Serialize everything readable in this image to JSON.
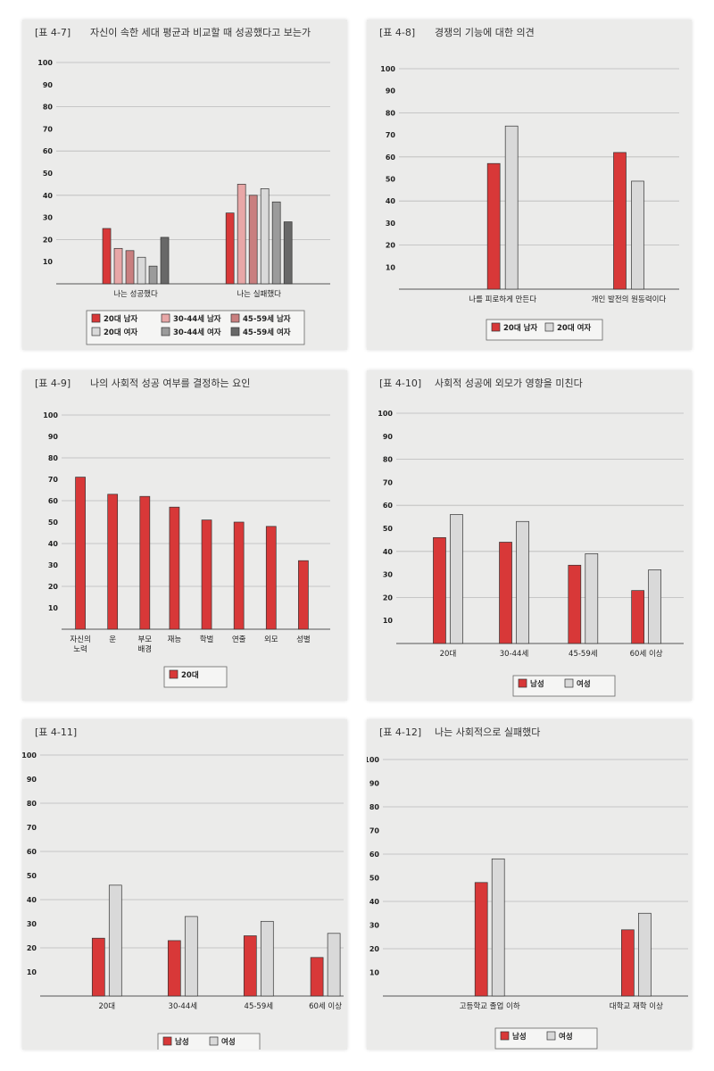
{
  "colors": {
    "red": "#d83838",
    "pink_light": "#e8a7a7",
    "pink_mid": "#c97f7f",
    "gray_light": "#d9d9d9",
    "gray_mid": "#9b9b9b",
    "gray_dark": "#686868",
    "panel_bg": "#ebebea"
  },
  "chart_data": [
    {
      "type": "bar",
      "label": "[표 4-7]",
      "title": "자신이 속한 세대 평균과 비교할 때 성공했다고 보는가",
      "categories": [
        "나는 성공했다",
        "나는 실패했다"
      ],
      "series": [
        {
          "name": "20대 남자",
          "values": [
            25,
            32
          ],
          "color": "#d83838"
        },
        {
          "name": "30-44세 남자",
          "values": [
            16,
            45
          ],
          "color": "#e8a7a7"
        },
        {
          "name": "45-59세 남자",
          "values": [
            15,
            40
          ],
          "color": "#c97f7f"
        },
        {
          "name": "20대 여자",
          "values": [
            12,
            43
          ],
          "color": "#d9d9d9"
        },
        {
          "name": "30-44세 여자",
          "values": [
            8,
            37
          ],
          "color": "#9b9b9b"
        },
        {
          "name": "45-59세 여자",
          "values": [
            21,
            28
          ],
          "color": "#686868"
        }
      ],
      "yticks": [
        10,
        20,
        30,
        40,
        50,
        60,
        70,
        80,
        90,
        100
      ],
      "ylim": [
        0,
        100
      ],
      "grid": true,
      "legend_position": "bottom"
    },
    {
      "type": "bar",
      "label": "[표 4-8]",
      "title": "경쟁의 기능에 대한 의견",
      "categories": [
        "나를 피로하게 만든다",
        "개인 발전의 원동력이다"
      ],
      "series": [
        {
          "name": "20대 남자",
          "values": [
            57,
            62
          ],
          "color": "#d83838"
        },
        {
          "name": "20대 여자",
          "values": [
            74,
            49
          ],
          "color": "#d9d9d9"
        }
      ],
      "yticks": [
        10,
        20,
        30,
        40,
        50,
        60,
        70,
        80,
        90,
        100
      ],
      "ylim": [
        0,
        100
      ],
      "grid": true,
      "legend_position": "bottom"
    },
    {
      "type": "bar",
      "label": "[표 4-9]",
      "title": "나의 사회적 성공 여부를 결정하는 요인",
      "categories": [
        "자신의\n노력",
        "운",
        "부모\n배경",
        "재능",
        "학벌",
        "연줄",
        "외모",
        "성별"
      ],
      "series": [
        {
          "name": "20대",
          "values": [
            71,
            63,
            62,
            57,
            51,
            50,
            48,
            32
          ],
          "color": "#d83838"
        }
      ],
      "yticks": [
        10,
        20,
        30,
        40,
        50,
        60,
        70,
        80,
        90,
        100
      ],
      "ylim": [
        0,
        100
      ],
      "grid": true,
      "legend_position": "bottom"
    },
    {
      "type": "bar",
      "label": "[표 4-10]",
      "title": "사회적 성공에 외모가 영향을 미친다",
      "categories": [
        "20대",
        "30-44세",
        "45-59세",
        "60세 이상"
      ],
      "series": [
        {
          "name": "남성",
          "values": [
            46,
            44,
            34,
            23
          ],
          "color": "#d83838"
        },
        {
          "name": "여성",
          "values": [
            56,
            53,
            39,
            32
          ],
          "color": "#d9d9d9"
        }
      ],
      "yticks": [
        10,
        20,
        30,
        40,
        50,
        60,
        70,
        80,
        90,
        100
      ],
      "ylim": [
        0,
        100
      ],
      "grid": true,
      "legend_position": "bottom"
    },
    {
      "type": "bar",
      "label": "[표 4-11]",
      "title": "",
      "categories": [
        "20대",
        "30-44세",
        "45-59세",
        "60세 이상"
      ],
      "series": [
        {
          "name": "남성",
          "values": [
            24,
            23,
            25,
            16
          ],
          "color": "#d83838"
        },
        {
          "name": "여성",
          "values": [
            46,
            33,
            31,
            26
          ],
          "color": "#d9d9d9"
        }
      ],
      "yticks": [
        10,
        20,
        30,
        40,
        50,
        60,
        70,
        80,
        90,
        100
      ],
      "ylim": [
        0,
        100
      ],
      "grid": true,
      "legend_position": "bottom"
    },
    {
      "type": "bar",
      "label": "[표 4-12]",
      "title": "나는 사회적으로 실패했다",
      "categories": [
        "고등학교 졸업 이하",
        "대학교 재학 이상"
      ],
      "series": [
        {
          "name": "남성",
          "values": [
            48,
            28
          ],
          "color": "#d83838"
        },
        {
          "name": "여성",
          "values": [
            58,
            35
          ],
          "color": "#d9d9d9"
        }
      ],
      "yticks": [
        10,
        20,
        30,
        40,
        50,
        60,
        70,
        80,
        90,
        100
      ],
      "ylim": [
        0,
        100
      ],
      "grid": true,
      "legend_position": "bottom"
    }
  ]
}
